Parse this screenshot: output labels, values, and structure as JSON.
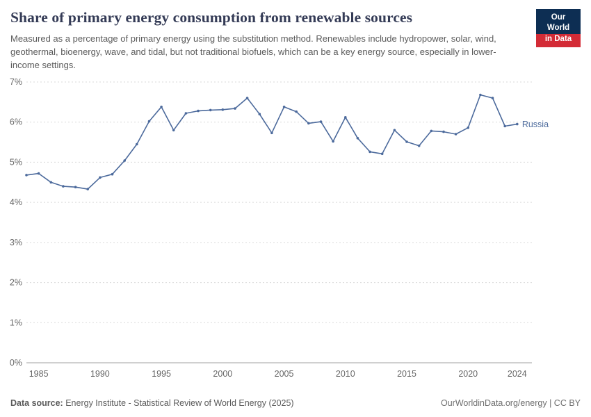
{
  "header": {
    "title": "Share of primary energy consumption from renewable sources",
    "subtitle": "Measured as a percentage of primary energy using the substitution method. Renewables include hydropower, solar, wind, geothermal, bioenergy, wave, and tidal, but not traditional biofuels, which can be a key energy source, especially in lower-income settings.",
    "logo": {
      "line1": "Our World",
      "line2": "in Data"
    }
  },
  "colors": {
    "series_line": "#4c6a9c",
    "logo_navy": "#0d2e53",
    "logo_red": "#d32b36",
    "gridline": "#dadada",
    "axis_line": "#a1a1a1",
    "tick_label": "#666666",
    "title_text": "#343b56",
    "subtitle_text": "#5b5b5b"
  },
  "chart_data": {
    "type": "line",
    "title": "Share of primary energy consumption from renewable sources",
    "xlabel": "",
    "ylabel": "",
    "grid": "horizontal-dashed",
    "legend_position": "end-of-line-label",
    "ylim": [
      0,
      7
    ],
    "xlim": [
      1984,
      2025.2
    ],
    "y_ticks": [
      "0%",
      "1%",
      "2%",
      "3%",
      "4%",
      "5%",
      "6%",
      "7%"
    ],
    "x_ticks": [
      "1985",
      "1990",
      "1995",
      "2000",
      "2005",
      "2010",
      "2015",
      "2020",
      "2024"
    ],
    "x": [
      1984,
      1985,
      1986,
      1987,
      1988,
      1989,
      1990,
      1991,
      1992,
      1993,
      1994,
      1995,
      1996,
      1997,
      1998,
      1999,
      2000,
      2001,
      2002,
      2003,
      2004,
      2005,
      2006,
      2007,
      2008,
      2009,
      2010,
      2011,
      2012,
      2013,
      2014,
      2015,
      2016,
      2017,
      2018,
      2019,
      2020,
      2021,
      2022,
      2023,
      2024
    ],
    "series": [
      {
        "name": "Russia",
        "unit": "%",
        "values": [
          4.68,
          4.72,
          4.5,
          4.4,
          4.38,
          4.33,
          4.62,
          4.7,
          5.04,
          5.45,
          6.02,
          6.38,
          5.8,
          6.22,
          6.28,
          6.3,
          6.31,
          6.34,
          6.6,
          6.2,
          5.73,
          6.38,
          6.26,
          5.97,
          6.01,
          5.52,
          6.12,
          5.6,
          5.26,
          5.21,
          5.8,
          5.51,
          5.41,
          5.78,
          5.76,
          5.7,
          5.86,
          6.68,
          6.6,
          5.9,
          5.95
        ]
      }
    ]
  },
  "footer": {
    "source_label": "Data source:",
    "source_text": " Energy Institute - Statistical Review of World Energy (2025)",
    "right_text": "OurWorldinData.org/energy | CC BY"
  }
}
